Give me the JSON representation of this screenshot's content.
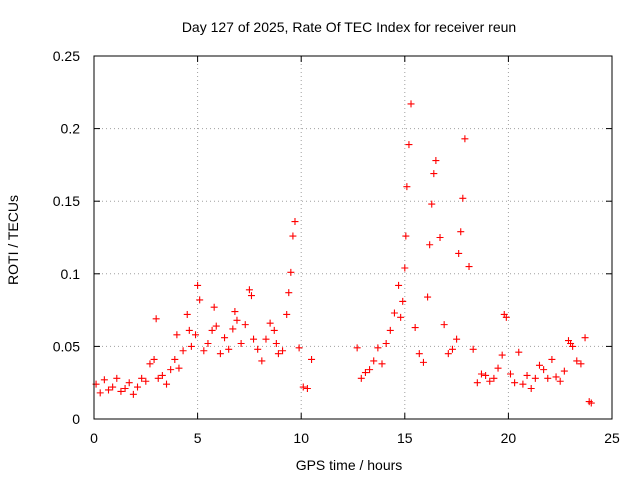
{
  "chart_data": {
    "type": "scatter",
    "title": "Day 127 of 2025, Rate Of TEC Index for receiver reun",
    "xlabel": "GPS time / hours",
    "ylabel": "ROTI / TECUs",
    "xlim": [
      0,
      25
    ],
    "ylim": [
      0,
      0.25
    ],
    "xticks": [
      0,
      5,
      10,
      15,
      20,
      25
    ],
    "xtick_labels": [
      "0",
      "5",
      "10",
      "15",
      "20",
      "25"
    ],
    "yticks": [
      0,
      0.05,
      0.1,
      0.15,
      0.2,
      0.25
    ],
    "ytick_labels": [
      "0",
      "0.05",
      "0.1",
      "0.15",
      "0.2",
      "0.25"
    ],
    "grid": true,
    "marker": "+",
    "series": [
      {
        "name": "ROTI",
        "color": "#ff0000",
        "x": [
          0.1,
          0.3,
          0.5,
          0.7,
          0.9,
          1.1,
          1.3,
          1.5,
          1.7,
          1.9,
          2.1,
          2.3,
          2.5,
          2.7,
          2.9,
          3.0,
          3.1,
          3.3,
          3.5,
          3.7,
          3.9,
          4.0,
          4.1,
          4.3,
          4.5,
          4.6,
          4.7,
          4.9,
          5.0,
          5.1,
          5.3,
          5.5,
          5.7,
          5.8,
          5.9,
          6.1,
          6.3,
          6.5,
          6.7,
          6.8,
          6.9,
          7.1,
          7.3,
          7.5,
          7.6,
          7.7,
          7.9,
          8.1,
          8.3,
          8.5,
          8.7,
          8.8,
          8.9,
          9.1,
          9.3,
          9.4,
          9.5,
          9.6,
          9.7,
          9.9,
          10.1,
          10.3,
          10.5,
          12.7,
          12.9,
          13.1,
          13.3,
          13.5,
          13.7,
          13.9,
          14.1,
          14.3,
          14.5,
          14.7,
          14.8,
          14.9,
          15.0,
          15.05,
          15.1,
          15.2,
          15.3,
          15.5,
          15.7,
          15.9,
          16.1,
          16.2,
          16.3,
          16.4,
          16.5,
          16.7,
          16.9,
          17.1,
          17.3,
          17.5,
          17.6,
          17.7,
          17.8,
          17.9,
          18.1,
          18.3,
          18.5,
          18.7,
          18.9,
          19.1,
          19.3,
          19.5,
          19.7,
          19.8,
          19.9,
          20.1,
          20.3,
          20.5,
          20.7,
          20.9,
          21.1,
          21.3,
          21.5,
          21.7,
          21.9,
          22.1,
          22.3,
          22.5,
          22.7,
          22.9,
          23.0,
          23.1,
          23.3,
          23.5,
          23.7,
          23.9,
          24.0
        ],
        "y": [
          0.024,
          0.018,
          0.027,
          0.02,
          0.022,
          0.028,
          0.019,
          0.021,
          0.025,
          0.017,
          0.022,
          0.028,
          0.026,
          0.038,
          0.041,
          0.069,
          0.028,
          0.03,
          0.024,
          0.034,
          0.041,
          0.058,
          0.035,
          0.047,
          0.072,
          0.061,
          0.05,
          0.058,
          0.092,
          0.082,
          0.047,
          0.052,
          0.061,
          0.077,
          0.064,
          0.045,
          0.056,
          0.048,
          0.062,
          0.074,
          0.068,
          0.052,
          0.065,
          0.089,
          0.085,
          0.055,
          0.048,
          0.04,
          0.055,
          0.066,
          0.061,
          0.052,
          0.045,
          0.047,
          0.072,
          0.087,
          0.101,
          0.126,
          0.136,
          0.049,
          0.022,
          0.021,
          0.041,
          0.049,
          0.028,
          0.032,
          0.034,
          0.04,
          0.049,
          0.038,
          0.052,
          0.061,
          0.073,
          0.092,
          0.07,
          0.081,
          0.104,
          0.126,
          0.16,
          0.189,
          0.217,
          0.063,
          0.045,
          0.039,
          0.084,
          0.12,
          0.148,
          0.169,
          0.178,
          0.125,
          0.065,
          0.045,
          0.048,
          0.055,
          0.114,
          0.129,
          0.152,
          0.193,
          0.105,
          0.048,
          0.025,
          0.031,
          0.03,
          0.026,
          0.028,
          0.035,
          0.044,
          0.072,
          0.07,
          0.031,
          0.025,
          0.046,
          0.024,
          0.03,
          0.021,
          0.028,
          0.037,
          0.034,
          0.028,
          0.041,
          0.029,
          0.026,
          0.033,
          0.054,
          0.052,
          0.05,
          0.04,
          0.038,
          0.056,
          0.012,
          0.011
        ]
      }
    ]
  }
}
